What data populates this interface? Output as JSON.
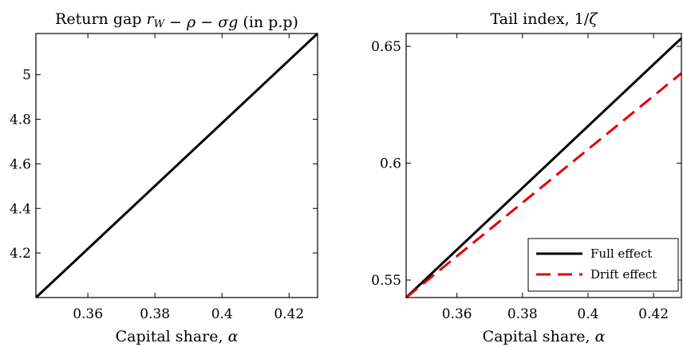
{
  "chart_data": [
    {
      "type": "line",
      "title": "Return gap r_W − ρ − σg (in p.p)",
      "xlabel": "Capital share, α",
      "ylabel": "",
      "xlim": [
        0.3445,
        0.4285
      ],
      "ylim": [
        4.0,
        5.185
      ],
      "xticks": [
        0.36,
        0.38,
        0.4,
        0.42
      ],
      "xtick_labels": [
        "0.36",
        "0.38",
        "0.4",
        "0.42"
      ],
      "yticks": [
        4.2,
        4.4,
        4.6,
        4.8,
        5.0
      ],
      "ytick_labels": [
        "4.2",
        "4.4",
        "4.6",
        "4.8",
        "5"
      ],
      "grid": false,
      "series": [
        {
          "color": "#000000",
          "dash": "solid",
          "x": [
            0.3445,
            0.4285
          ],
          "y": [
            4.0,
            5.185
          ]
        }
      ]
    },
    {
      "type": "line",
      "title": "Tail index, 1/ζ",
      "xlabel": "Capital share, α",
      "ylabel": "",
      "xlim": [
        0.3445,
        0.4285
      ],
      "ylim": [
        0.5425,
        0.6555
      ],
      "xticks": [
        0.36,
        0.38,
        0.4,
        0.42
      ],
      "xtick_labels": [
        "0.36",
        "0.38",
        "0.4",
        "0.42"
      ],
      "yticks": [
        0.55,
        0.6,
        0.65
      ],
      "ytick_labels": [
        "0.55",
        "0.6",
        "0.65"
      ],
      "grid": false,
      "legend_position": "bottom-right",
      "series": [
        {
          "name": "Full effect",
          "color": "#000000",
          "dash": "solid",
          "x": [
            0.3445,
            0.4285
          ],
          "y": [
            0.5425,
            0.6535
          ]
        },
        {
          "name": "Drift effect",
          "color": "#e00000",
          "dash": "dashed",
          "x": [
            0.3445,
            0.4285
          ],
          "y": [
            0.5425,
            0.6385
          ]
        }
      ]
    }
  ]
}
